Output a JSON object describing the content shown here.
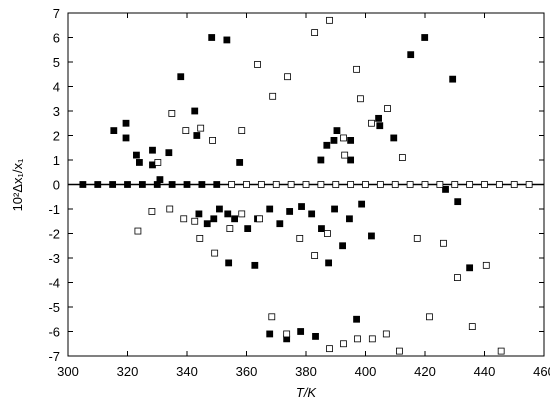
{
  "chart_data": {
    "type": "scatter",
    "x_label": "T/K",
    "y_label": "10²Δx₁/x₁",
    "xlim": [
      300,
      460
    ],
    "xticks": [
      300,
      320,
      340,
      360,
      380,
      400,
      420,
      440,
      460
    ],
    "ylim": [
      -7,
      7
    ],
    "yticks": [
      -7,
      -6,
      -5,
      -4,
      -3,
      -2,
      -1,
      0,
      1,
      2,
      3,
      4,
      5,
      6,
      7
    ],
    "series": [
      {
        "marker": "filled",
        "color": "#000000",
        "x": [
          305,
          310,
          315,
          320,
          325,
          330,
          335,
          340,
          345,
          350,
          315.4,
          319.5,
          319.5,
          323,
          324,
          328.4,
          328.4,
          333.9,
          337.9,
          342.6,
          343.3,
          348.3,
          353.4,
          357.7,
          385,
          387,
          389.4,
          390.4,
          395,
          395,
          404.4,
          404.8,
          409.5,
          415.2,
          419.9,
          429.3,
          353.7,
          354,
          362.8,
          367.8,
          373.5,
          378.2,
          383.2,
          387.6,
          392.3,
          397,
          402,
          431,
          435,
          426.9,
          344,
          346.8,
          349,
          350.9,
          356,
          360.4,
          363.7,
          367.8,
          371.2,
          374.5,
          378.5,
          381.9,
          385.2,
          389.6,
          394.6,
          398.7,
          330.9
        ],
        "values": [
          0,
          0,
          0,
          0,
          0,
          0,
          0,
          0,
          0,
          0,
          2.2,
          2.5,
          1.9,
          1.2,
          0.9,
          1.4,
          0.8,
          1.3,
          4.4,
          3.0,
          2.0,
          6.0,
          5.9,
          0.9,
          1.0,
          1.6,
          1.8,
          2.2,
          1.8,
          1.0,
          2.7,
          2.4,
          1.9,
          5.3,
          6.0,
          4.3,
          -1.2,
          -3.2,
          -3.3,
          -6.1,
          -6.3,
          -6.0,
          -6.2,
          -3.2,
          -2.5,
          -5.5,
          -2.1,
          -0.7,
          -3.4,
          -0.2,
          -1.2,
          -1.6,
          -1.4,
          -1.0,
          -1.4,
          -1.8,
          -1.4,
          -1.0,
          -1.6,
          -1.1,
          -0.9,
          -1.2,
          -1.8,
          -1.0,
          -1.4,
          -0.8,
          0.2
        ]
      },
      {
        "marker": "open",
        "color": "#000000",
        "x": [
          355,
          360,
          365,
          370,
          375,
          380,
          385,
          390,
          395,
          400,
          405,
          410,
          415,
          420,
          425,
          430,
          435,
          440,
          445,
          450,
          455,
          330.2,
          334.9,
          339.6,
          344.6,
          348.6,
          358.4,
          363.7,
          368.8,
          373.8,
          382.9,
          387.9,
          392.6,
          393,
          397,
          398.3,
          402,
          407.4,
          412.4,
          323.5,
          328.2,
          334.2,
          338.9,
          342.6,
          344.3,
          349.3,
          354.4,
          358.4,
          364.4,
          368.5,
          373.5,
          377.9,
          382.9,
          387.2,
          387.9,
          392.6,
          397.3,
          402.3,
          407,
          411.4,
          417.4,
          421.5,
          426.2,
          430.9,
          435.9,
          440.6,
          445.6
        ],
        "values": [
          0,
          0,
          0,
          0,
          0,
          0,
          0,
          0,
          0,
          0,
          0,
          0,
          0,
          0,
          0,
          0,
          0,
          0,
          0,
          0,
          0,
          0.9,
          2.9,
          2.2,
          2.3,
          1.8,
          2.2,
          4.9,
          3.6,
          4.4,
          6.2,
          6.7,
          1.9,
          1.2,
          4.7,
          3.5,
          2.5,
          3.1,
          1.1,
          -1.9,
          -1.1,
          -1.0,
          -1.4,
          -1.5,
          -2.2,
          -2.8,
          -1.8,
          -1.2,
          -1.4,
          -5.4,
          -6.1,
          -2.2,
          -2.9,
          -2.0,
          -6.7,
          -6.5,
          -6.3,
          -6.3,
          -6.1,
          -6.8,
          -2.2,
          -5.4,
          -2.4,
          -3.8,
          -5.8,
          -3.3,
          -6.8
        ]
      }
    ]
  }
}
